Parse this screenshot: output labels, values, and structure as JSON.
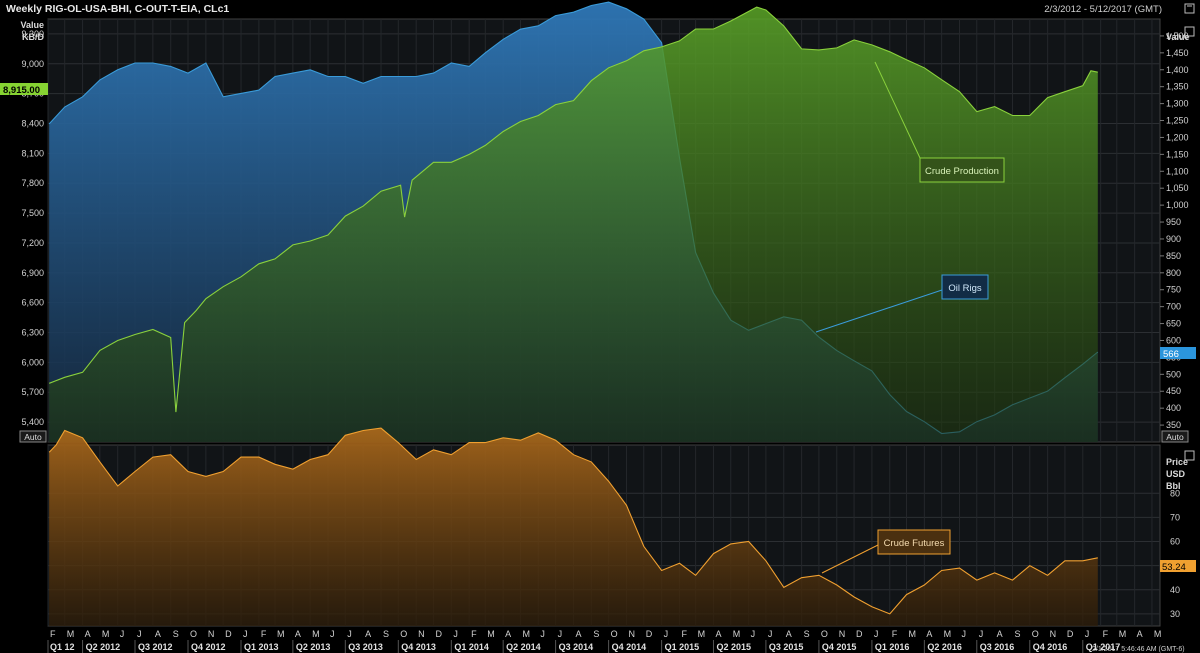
{
  "header": {
    "title": "Weekly RIG-OL-USA-BHI, C-OUT-T-EIA, CLc1",
    "date_range": "2/3/2012 - 5/12/2017 (GMT)"
  },
  "upper_panel": {
    "left_axis_title": [
      "Value",
      "KB/D"
    ],
    "right_axis_title": "Value",
    "auto_label": "Auto",
    "left_ticks": [
      "9,300",
      "9,000",
      "8,700",
      "8,400",
      "8,100",
      "7,800",
      "7,500",
      "7,200",
      "6,900",
      "6,600",
      "6,300",
      "6,000",
      "5,700",
      "5,400"
    ],
    "right_ticks": [
      "1,500",
      "1,450",
      "1,400",
      "1,350",
      "1,300",
      "1,250",
      "1,200",
      "1,150",
      "1,100",
      "1,050",
      "1,000",
      "950",
      "900",
      "850",
      "800",
      "750",
      "700",
      "650",
      "600",
      "550",
      "500",
      "450",
      "400",
      "350"
    ],
    "left_last_value": "8,915.00",
    "right_last_value": "566"
  },
  "lower_panel": {
    "right_axis_title": [
      "Price",
      "USD",
      "Bbl"
    ],
    "auto_label": "Auto",
    "right_ticks": [
      "80",
      "70",
      "60",
      "50",
      "40",
      "30"
    ],
    "last_value": "53.24"
  },
  "time_axis": {
    "months": [
      "F",
      "M",
      "A",
      "M",
      "J",
      "J",
      "A",
      "S",
      "O",
      "N",
      "D",
      "J",
      "F",
      "M",
      "A",
      "M",
      "J",
      "J",
      "A",
      "S",
      "O",
      "N",
      "D",
      "J",
      "F",
      "M",
      "A",
      "M",
      "J",
      "J",
      "A",
      "S",
      "O",
      "N",
      "D",
      "J",
      "F",
      "M",
      "A",
      "M",
      "J",
      "J",
      "A",
      "S",
      "O",
      "N",
      "D",
      "J",
      "F",
      "M",
      "A",
      "M",
      "J",
      "J",
      "A",
      "S",
      "O",
      "N",
      "D",
      "J",
      "F",
      "M",
      "A",
      "M",
      "J",
      "J",
      "A",
      "S",
      "O",
      "N",
      "D",
      "J",
      "F",
      "M",
      "A",
      "M"
    ],
    "quarters": [
      "Q1 12",
      "Q2 2012",
      "Q3 2012",
      "Q4 2012",
      "Q1 2013",
      "Q2 2013",
      "Q3 2013",
      "Q4 2013",
      "Q1 2014",
      "Q2 2014",
      "Q3 2014",
      "Q4 2014",
      "Q1 2015",
      "Q2 2015",
      "Q3 2015",
      "Q4 2015",
      "Q1 2016",
      "Q2 2016",
      "Q3 2016",
      "Q4 2016",
      "Q1 2017"
    ],
    "status_overlay": "2/1/2017 5:46:46 AM (GMT-6)"
  },
  "annotations": {
    "crude_production": "Crude Production",
    "oil_rigs": "Oil Rigs",
    "crude_futures": "Crude Futures"
  },
  "colors": {
    "oil_rigs": "#3a9bd9",
    "crude_production": "#8ad13c",
    "crude_futures": "#f0a030",
    "last_value_green": "#86d332",
    "last_value_blue": "#2b95dc",
    "last_value_orange": "#f0a030"
  },
  "chart_data": [
    {
      "type": "area",
      "title": "Weekly RIG-OL-USA-BHI, C-OUT-T-EIA, CLc1",
      "ylabel": "KB/D",
      "ylim": [
        5200,
        9450
      ],
      "right_ylabel": "Value",
      "right_ylim": [
        300,
        1550
      ],
      "series": [
        {
          "name": "Crude Production",
          "axis": "left",
          "points": [
            [
              "2012-02-03",
              5790
            ],
            [
              "2012-03-01",
              5850
            ],
            [
              "2012-04-01",
              5900
            ],
            [
              "2012-05-01",
              6120
            ],
            [
              "2012-06-01",
              6220
            ],
            [
              "2012-07-01",
              6280
            ],
            [
              "2012-08-01",
              6330
            ],
            [
              "2012-09-01",
              6250
            ],
            [
              "2012-09-10",
              5500
            ],
            [
              "2012-09-25",
              6400
            ],
            [
              "2012-10-15",
              6520
            ],
            [
              "2012-11-01",
              6640
            ],
            [
              "2012-12-01",
              6760
            ],
            [
              "2013-01-01",
              6860
            ],
            [
              "2013-02-01",
              6990
            ],
            [
              "2013-03-01",
              7040
            ],
            [
              "2013-04-01",
              7180
            ],
            [
              "2013-05-01",
              7220
            ],
            [
              "2013-06-01",
              7280
            ],
            [
              "2013-07-01",
              7470
            ],
            [
              "2013-08-01",
              7570
            ],
            [
              "2013-09-01",
              7720
            ],
            [
              "2013-10-05",
              7780
            ],
            [
              "2013-10-12",
              7460
            ],
            [
              "2013-10-25",
              7830
            ],
            [
              "2013-12-01",
              8010
            ],
            [
              "2014-01-01",
              8010
            ],
            [
              "2014-02-01",
              8090
            ],
            [
              "2014-03-01",
              8180
            ],
            [
              "2014-04-01",
              8320
            ],
            [
              "2014-05-01",
              8420
            ],
            [
              "2014-06-01",
              8480
            ],
            [
              "2014-07-01",
              8590
            ],
            [
              "2014-08-01",
              8630
            ],
            [
              "2014-09-01",
              8830
            ],
            [
              "2014-10-01",
              8960
            ],
            [
              "2014-11-01",
              9030
            ],
            [
              "2014-12-01",
              9130
            ],
            [
              "2015-01-01",
              9170
            ],
            [
              "2015-02-01",
              9230
            ],
            [
              "2015-03-01",
              9350
            ],
            [
              "2015-04-01",
              9350
            ],
            [
              "2015-05-01",
              9430
            ],
            [
              "2015-06-15",
              9570
            ],
            [
              "2015-07-01",
              9540
            ],
            [
              "2015-08-01",
              9380
            ],
            [
              "2015-09-01",
              9150
            ],
            [
              "2015-10-01",
              9140
            ],
            [
              "2015-11-01",
              9160
            ],
            [
              "2015-12-01",
              9240
            ],
            [
              "2016-01-01",
              9190
            ],
            [
              "2016-02-01",
              9120
            ],
            [
              "2016-03-01",
              9040
            ],
            [
              "2016-04-01",
              8960
            ],
            [
              "2016-05-01",
              8840
            ],
            [
              "2016-06-01",
              8720
            ],
            [
              "2016-07-01",
              8520
            ],
            [
              "2016-08-01",
              8570
            ],
            [
              "2016-09-01",
              8480
            ],
            [
              "2016-10-01",
              8480
            ],
            [
              "2016-11-01",
              8660
            ],
            [
              "2016-12-01",
              8720
            ],
            [
              "2017-01-01",
              8780
            ],
            [
              "2017-01-15",
              8930
            ],
            [
              "2017-01-27",
              8915
            ]
          ]
        },
        {
          "name": "Oil Rigs",
          "axis": "right",
          "points": [
            [
              "2012-02-03",
              1240
            ],
            [
              "2012-03-01",
              1290
            ],
            [
              "2012-04-01",
              1320
            ],
            [
              "2012-05-01",
              1370
            ],
            [
              "2012-06-01",
              1400
            ],
            [
              "2012-07-01",
              1420
            ],
            [
              "2012-08-01",
              1420
            ],
            [
              "2012-09-01",
              1410
            ],
            [
              "2012-10-01",
              1390
            ],
            [
              "2012-11-01",
              1420
            ],
            [
              "2012-12-01",
              1320
            ],
            [
              "2013-01-01",
              1330
            ],
            [
              "2013-02-01",
              1340
            ],
            [
              "2013-03-01",
              1380
            ],
            [
              "2013-04-01",
              1390
            ],
            [
              "2013-05-01",
              1400
            ],
            [
              "2013-06-01",
              1380
            ],
            [
              "2013-07-01",
              1380
            ],
            [
              "2013-08-01",
              1360
            ],
            [
              "2013-09-01",
              1380
            ],
            [
              "2013-10-01",
              1380
            ],
            [
              "2013-11-01",
              1380
            ],
            [
              "2013-12-01",
              1390
            ],
            [
              "2014-01-01",
              1420
            ],
            [
              "2014-02-01",
              1410
            ],
            [
              "2014-03-01",
              1450
            ],
            [
              "2014-04-01",
              1490
            ],
            [
              "2014-05-01",
              1520
            ],
            [
              "2014-06-01",
              1530
            ],
            [
              "2014-07-01",
              1560
            ],
            [
              "2014-08-01",
              1570
            ],
            [
              "2014-09-01",
              1590
            ],
            [
              "2014-10-01",
              1600
            ],
            [
              "2014-11-01",
              1580
            ],
            [
              "2014-12-01",
              1550
            ],
            [
              "2015-01-01",
              1480
            ],
            [
              "2015-02-01",
              1140
            ],
            [
              "2015-03-01",
              860
            ],
            [
              "2015-04-01",
              740
            ],
            [
              "2015-05-01",
              660
            ],
            [
              "2015-06-01",
              630
            ],
            [
              "2015-07-01",
              650
            ],
            [
              "2015-08-01",
              670
            ],
            [
              "2015-09-01",
              660
            ],
            [
              "2015-10-01",
              610
            ],
            [
              "2015-11-01",
              570
            ],
            [
              "2015-12-01",
              540
            ],
            [
              "2016-01-01",
              510
            ],
            [
              "2016-02-01",
              440
            ],
            [
              "2016-03-01",
              390
            ],
            [
              "2016-04-01",
              360
            ],
            [
              "2016-05-01",
              325
            ],
            [
              "2016-06-01",
              330
            ],
            [
              "2016-07-01",
              360
            ],
            [
              "2016-08-01",
              380
            ],
            [
              "2016-09-01",
              410
            ],
            [
              "2016-10-01",
              430
            ],
            [
              "2016-11-01",
              450
            ],
            [
              "2016-12-01",
              490
            ],
            [
              "2017-01-01",
              530
            ],
            [
              "2017-01-27",
              566
            ]
          ]
        }
      ]
    },
    {
      "type": "area",
      "ylabel": "Price USD Bbl",
      "ylim": [
        25,
        100
      ],
      "series": [
        {
          "name": "Crude Futures",
          "axis": "right",
          "points": [
            [
              "2012-02-03",
              97
            ],
            [
              "2012-02-15",
              100
            ],
            [
              "2012-03-01",
              106
            ],
            [
              "2012-04-01",
              103
            ],
            [
              "2012-05-01",
              93
            ],
            [
              "2012-06-01",
              83
            ],
            [
              "2012-07-01",
              89
            ],
            [
              "2012-08-01",
              95
            ],
            [
              "2012-09-01",
              96
            ],
            [
              "2012-10-01",
              89
            ],
            [
              "2012-11-01",
              87
            ],
            [
              "2012-12-01",
              89
            ],
            [
              "2013-01-01",
              95
            ],
            [
              "2013-02-01",
              95
            ],
            [
              "2013-03-01",
              92
            ],
            [
              "2013-04-01",
              90
            ],
            [
              "2013-05-01",
              94
            ],
            [
              "2013-06-01",
              96
            ],
            [
              "2013-07-01",
              104
            ],
            [
              "2013-08-01",
              106
            ],
            [
              "2013-09-01",
              107
            ],
            [
              "2013-10-01",
              101
            ],
            [
              "2013-11-01",
              94
            ],
            [
              "2013-12-01",
              98
            ],
            [
              "2014-01-01",
              96
            ],
            [
              "2014-02-01",
              101
            ],
            [
              "2014-03-01",
              101
            ],
            [
              "2014-04-01",
              103
            ],
            [
              "2014-05-01",
              102
            ],
            [
              "2014-06-01",
              105
            ],
            [
              "2014-07-01",
              102
            ],
            [
              "2014-08-01",
              96
            ],
            [
              "2014-09-01",
              93
            ],
            [
              "2014-10-01",
              85
            ],
            [
              "2014-11-01",
              75
            ],
            [
              "2014-12-01",
              58
            ],
            [
              "2015-01-01",
              48
            ],
            [
              "2015-02-01",
              51
            ],
            [
              "2015-03-01",
              46
            ],
            [
              "2015-04-01",
              55
            ],
            [
              "2015-05-01",
              59
            ],
            [
              "2015-06-01",
              60
            ],
            [
              "2015-07-01",
              52
            ],
            [
              "2015-08-01",
              41
            ],
            [
              "2015-09-01",
              45
            ],
            [
              "2015-10-01",
              46
            ],
            [
              "2015-11-01",
              42
            ],
            [
              "2015-12-01",
              37
            ],
            [
              "2016-01-01",
              33
            ],
            [
              "2016-02-01",
              30
            ],
            [
              "2016-03-01",
              38
            ],
            [
              "2016-04-01",
              42
            ],
            [
              "2016-05-01",
              48
            ],
            [
              "2016-06-01",
              49
            ],
            [
              "2016-07-01",
              44
            ],
            [
              "2016-08-01",
              47
            ],
            [
              "2016-09-01",
              44
            ],
            [
              "2016-10-01",
              50
            ],
            [
              "2016-11-01",
              46
            ],
            [
              "2016-12-01",
              52
            ],
            [
              "2017-01-01",
              52
            ],
            [
              "2017-01-27",
              53.24
            ]
          ]
        }
      ]
    }
  ]
}
